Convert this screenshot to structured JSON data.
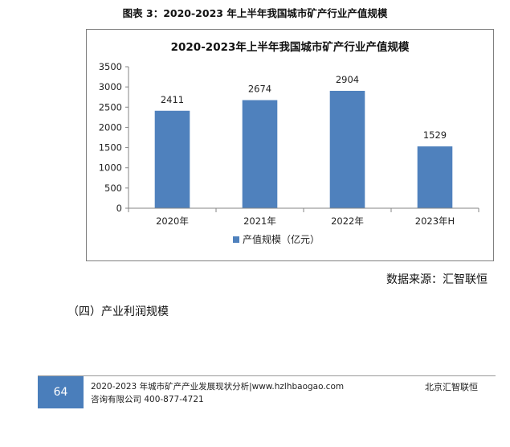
{
  "figure_caption": "图表 3：2020-2023 年上半年我国城市矿产行业产值规模",
  "chart_data": {
    "type": "bar",
    "title": "2020-2023年上半年我国城市矿产行业产值规模",
    "categories": [
      "2020年",
      "2021年",
      "2022年",
      "2023年H"
    ],
    "series": [
      {
        "name": "产值规模（亿元）",
        "values": [
          2411,
          2674,
          2904,
          1529
        ]
      }
    ],
    "data_labels": [
      "2411",
      "2674",
      "2904",
      "1529"
    ],
    "ylim": [
      0,
      3500
    ],
    "yticks": [
      0,
      500,
      1000,
      1500,
      2000,
      2500,
      3000,
      3500
    ],
    "grid": false,
    "legend_position": "bottom",
    "colors": {
      "bar": "#4f81bd",
      "axis": "#868686"
    }
  },
  "source": "数据来源：汇智联恒",
  "section_heading": "（四）产业利润规模",
  "footer": {
    "page_number": "64",
    "line1": "2020-2023 年城市矿产产业发展现状分析|www.hzlhbaogao.com",
    "line2": "咨询有限公司  400-877-4721",
    "company": "北京汇智联恒",
    "accent_color": "#4a7ebb"
  }
}
